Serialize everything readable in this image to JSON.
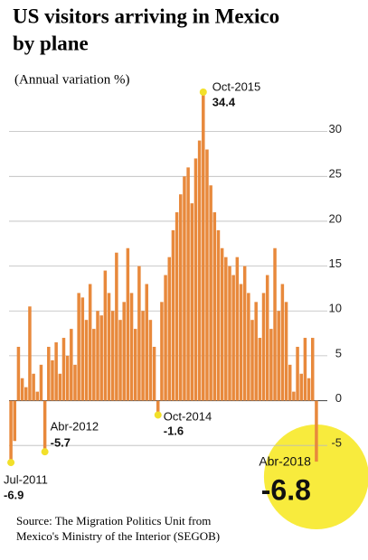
{
  "chart_data": {
    "type": "bar",
    "title": [
      "US visitors arriving in Mexico",
      "by plane"
    ],
    "subtitle": "(Annual variation %)",
    "source": [
      "Source: The Migration Politics Unit from",
      "Mexico's Ministry of the Interior (SEGOB)"
    ],
    "categories": [
      "Jul-2011",
      null,
      null,
      null,
      null,
      null,
      null,
      null,
      null,
      "Abr-2012",
      null,
      null,
      null,
      null,
      null,
      null,
      null,
      null,
      null,
      null,
      null,
      null,
      null,
      null,
      null,
      null,
      null,
      null,
      null,
      null,
      null,
      null,
      null,
      null,
      null,
      null,
      null,
      null,
      null,
      "Oct-2014",
      null,
      null,
      null,
      null,
      null,
      null,
      null,
      null,
      null,
      null,
      null,
      "Oct-2015",
      null,
      null,
      null,
      null,
      null,
      null,
      null,
      null,
      null,
      null,
      null,
      null,
      null,
      null,
      null,
      null,
      null,
      null,
      null,
      null,
      null,
      null,
      null,
      null,
      null,
      null,
      null,
      null,
      null,
      "Abr-2018"
    ],
    "values": [
      -6.9,
      -4.5,
      6,
      2.5,
      1.5,
      10.5,
      3,
      1,
      4,
      -5.7,
      6,
      4.5,
      6.5,
      3,
      7,
      5,
      8,
      4,
      12,
      11.5,
      9,
      13,
      8,
      10,
      9.5,
      14.5,
      12,
      10,
      16.5,
      9,
      11,
      17,
      12,
      8,
      15,
      10,
      13,
      9,
      6,
      -1.6,
      11,
      14,
      16,
      19,
      21,
      23,
      25,
      26,
      22,
      27,
      29,
      34.4,
      28,
      24,
      21,
      19,
      17,
      16,
      15,
      14,
      16,
      13,
      15,
      12,
      9,
      11,
      7,
      12,
      14,
      8,
      17,
      10,
      13,
      11,
      4,
      1,
      6,
      3,
      7,
      2.5,
      7,
      -6.8
    ],
    "color": "#e8893c",
    "ylim": [
      -8,
      35
    ],
    "yticks": [
      -5,
      0,
      5,
      10,
      15,
      20,
      25,
      30
    ],
    "grid": true
  }
}
